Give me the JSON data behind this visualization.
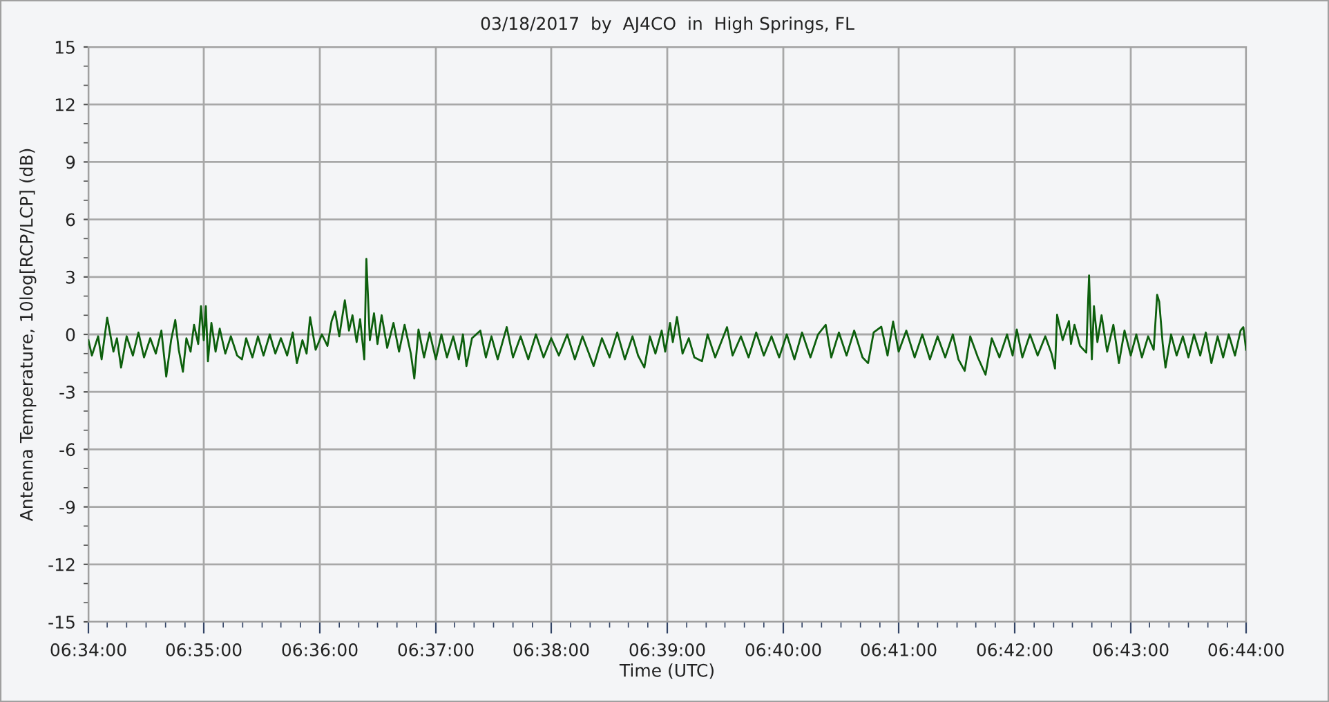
{
  "chart_data": {
    "type": "line",
    "title": "03/18/2017  by  AJ4CO  in  High Springs, FL",
    "xlabel": "Time (UTC)",
    "ylabel": "Antenna Temperature, 10log[RCP/LCP] (dB)",
    "x": [
      6.5667,
      6.5672,
      6.5681,
      6.5686,
      6.5694,
      6.5703,
      6.5708,
      6.5714,
      6.5722,
      6.5731,
      6.5739,
      6.5747,
      6.5756,
      6.5764,
      6.5772,
      6.5779,
      6.5786,
      6.5792,
      6.5797,
      6.5803,
      6.5808,
      6.5814,
      6.5819,
      6.5825,
      6.5829,
      6.5833,
      6.5836,
      6.5839,
      6.5844,
      6.585,
      6.5856,
      6.5864,
      6.5872,
      6.5881,
      6.5888,
      6.5894,
      6.5903,
      6.5911,
      6.5919,
      6.5928,
      6.5936,
      6.5944,
      6.5953,
      6.5961,
      6.5967,
      6.5975,
      6.5981,
      6.5986,
      6.5994,
      6.6003,
      6.6011,
      6.6017,
      6.6022,
      6.6028,
      6.6036,
      6.6042,
      6.6047,
      6.6053,
      6.6058,
      6.6064,
      6.6067,
      6.6072,
      6.6078,
      6.6083,
      6.6089,
      6.6097,
      6.6106,
      6.6114,
      6.6122,
      6.6131,
      6.6136,
      6.6142,
      6.615,
      6.6158,
      6.6167,
      6.6175,
      6.6183,
      6.6192,
      6.62,
      6.6206,
      6.6211,
      6.6219,
      6.6231,
      6.6239,
      6.6247,
      6.6256,
      6.6269,
      6.6278,
      6.6289,
      6.63,
      6.6311,
      6.6322,
      6.6333,
      6.6344,
      6.6356,
      6.6367,
      6.6378,
      6.6394,
      6.6406,
      6.6417,
      6.6428,
      6.6439,
      6.645,
      6.6458,
      6.6467,
      6.6475,
      6.6483,
      6.6492,
      6.6497,
      6.6504,
      6.6508,
      6.6514,
      6.6522,
      6.6531,
      6.6539,
      6.655,
      6.6558,
      6.6569,
      6.6586,
      6.6594,
      6.6606,
      6.6617,
      6.6628,
      6.6639,
      6.665,
      6.6661,
      6.6672,
      6.6683,
      6.6694,
      6.6706,
      6.6717,
      6.6728,
      6.6736,
      6.6747,
      6.6758,
      6.6769,
      6.6781,
      6.6789,
      6.6797,
      6.6808,
      6.6817,
      6.6825,
      6.6833,
      6.6844,
      6.6856,
      6.6867,
      6.6878,
      6.6889,
      6.69,
      6.6911,
      6.6919,
      6.6928,
      6.6936,
      6.6947,
      6.6958,
      6.6967,
      6.6978,
      6.6989,
      6.6997,
      6.7003,
      6.7011,
      6.7022,
      6.7033,
      6.7044,
      6.7053,
      6.7058,
      6.7061,
      6.7069,
      6.7078,
      6.7081,
      6.7086,
      6.7094,
      6.7103,
      6.7107,
      6.7111,
      6.7114,
      6.7119,
      6.7125,
      6.7133,
      6.7142,
      6.715,
      6.7158,
      6.7167,
      6.7175,
      6.7183,
      6.7192,
      6.72,
      6.7205,
      6.7208,
      6.7213,
      6.7217,
      6.7225,
      6.7233,
      6.7242,
      6.725,
      6.7258,
      6.7267,
      6.7275,
      6.7283,
      6.7292,
      6.73,
      6.7308,
      6.7317,
      6.7325,
      6.7329,
      6.7333
    ],
    "series": [
      {
        "color": "#0d5f0d",
        "values": [
          -0.3,
          -1.1,
          -0.1,
          -1.3,
          0.87,
          -0.9,
          -0.2,
          -1.73,
          -0.1,
          -1.1,
          0.1,
          -1.2,
          -0.2,
          -1.0,
          0.2,
          -2.2,
          -0.3,
          0.75,
          -0.8,
          -1.95,
          -0.2,
          -0.9,
          0.5,
          -0.5,
          1.47,
          -0.3,
          1.47,
          -1.4,
          0.6,
          -0.9,
          0.3,
          -1.0,
          -0.1,
          -1.1,
          -1.3,
          -0.2,
          -1.2,
          -0.1,
          -1.1,
          0.0,
          -1.0,
          -0.2,
          -1.1,
          0.1,
          -1.5,
          -0.3,
          -1.0,
          0.9,
          -0.8,
          0.0,
          -0.6,
          0.7,
          1.2,
          -0.1,
          1.78,
          0.2,
          1.0,
          -0.4,
          0.8,
          -1.3,
          3.94,
          -0.3,
          1.1,
          -0.5,
          1.0,
          -0.7,
          0.6,
          -0.9,
          0.5,
          -1.0,
          -2.3,
          0.26,
          -1.2,
          0.1,
          -1.3,
          0.0,
          -1.2,
          -0.1,
          -1.3,
          0.0,
          -1.65,
          -0.2,
          0.2,
          -1.2,
          -0.1,
          -1.3,
          0.38,
          -1.2,
          -0.1,
          -1.3,
          0.0,
          -1.2,
          -0.2,
          -1.1,
          0.0,
          -1.3,
          -0.1,
          -1.65,
          -0.2,
          -1.2,
          0.1,
          -1.3,
          -0.1,
          -1.1,
          -1.73,
          -0.1,
          -1.0,
          0.2,
          -0.9,
          0.6,
          -0.4,
          0.91,
          -1.0,
          -0.2,
          -1.2,
          -1.4,
          0.0,
          -1.2,
          0.38,
          -1.1,
          -0.1,
          -1.2,
          0.1,
          -1.1,
          -0.1,
          -1.2,
          0.0,
          -1.3,
          0.1,
          -1.2,
          0.0,
          0.5,
          -1.2,
          0.1,
          -1.1,
          0.2,
          -1.2,
          -1.5,
          0.1,
          0.4,
          -1.1,
          0.67,
          -0.9,
          0.2,
          -1.2,
          0.0,
          -1.3,
          -0.1,
          -1.2,
          0.0,
          -1.3,
          -1.9,
          -0.1,
          -1.2,
          -2.1,
          -0.2,
          -1.2,
          0.0,
          -1.1,
          0.26,
          -1.2,
          0.0,
          -1.1,
          -0.1,
          -1.0,
          -1.78,
          1.03,
          -0.3,
          0.7,
          -0.5,
          0.5,
          -0.6,
          -0.95,
          3.08,
          -1.3,
          1.47,
          -0.4,
          1.0,
          -0.9,
          0.5,
          -1.5,
          0.2,
          -1.1,
          0.0,
          -1.2,
          -0.1,
          -0.8,
          2.07,
          1.7,
          -0.5,
          -1.73,
          0.0,
          -1.1,
          -0.1,
          -1.2,
          0.0,
          -1.1,
          0.1,
          -1.5,
          -0.1,
          -1.2,
          0.0,
          -1.1,
          0.2,
          0.38,
          -0.8
        ]
      }
    ],
    "xlim": [
      6.5667,
      6.7333
    ],
    "xticks": [
      {
        "value": 6.5667,
        "label": "06:34:00"
      },
      {
        "value": 6.5694,
        "label": null
      },
      {
        "value": 6.5722,
        "label": null
      },
      {
        "value": 6.575,
        "label": null
      },
      {
        "value": 6.5778,
        "label": null
      },
      {
        "value": 6.5806,
        "label": null
      },
      {
        "value": 6.5833,
        "label": "06:35:00"
      },
      {
        "value": 6.5861,
        "label": null
      },
      {
        "value": 6.5889,
        "label": null
      },
      {
        "value": 6.5917,
        "label": null
      },
      {
        "value": 6.5944,
        "label": null
      },
      {
        "value": 6.5972,
        "label": null
      },
      {
        "value": 6.6,
        "label": "06:36:00"
      },
      {
        "value": 6.6028,
        "label": null
      },
      {
        "value": 6.6056,
        "label": null
      },
      {
        "value": 6.6083,
        "label": null
      },
      {
        "value": 6.6111,
        "label": null
      },
      {
        "value": 6.6139,
        "label": null
      },
      {
        "value": 6.6167,
        "label": "06:37:00"
      },
      {
        "value": 6.6194,
        "label": null
      },
      {
        "value": 6.6222,
        "label": null
      },
      {
        "value": 6.625,
        "label": null
      },
      {
        "value": 6.6278,
        "label": null
      },
      {
        "value": 6.6306,
        "label": null
      },
      {
        "value": 6.6333,
        "label": "06:38:00"
      },
      {
        "value": 6.6361,
        "label": null
      },
      {
        "value": 6.6389,
        "label": null
      },
      {
        "value": 6.6417,
        "label": null
      },
      {
        "value": 6.6444,
        "label": null
      },
      {
        "value": 6.6472,
        "label": null
      },
      {
        "value": 6.65,
        "label": "06:39:00"
      },
      {
        "value": 6.6528,
        "label": null
      },
      {
        "value": 6.6556,
        "label": null
      },
      {
        "value": 6.6583,
        "label": null
      },
      {
        "value": 6.6611,
        "label": null
      },
      {
        "value": 6.6639,
        "label": null
      },
      {
        "value": 6.6667,
        "label": "06:40:00"
      },
      {
        "value": 6.6694,
        "label": null
      },
      {
        "value": 6.6722,
        "label": null
      },
      {
        "value": 6.675,
        "label": null
      },
      {
        "value": 6.6778,
        "label": null
      },
      {
        "value": 6.6806,
        "label": null
      },
      {
        "value": 6.6833,
        "label": "06:41:00"
      },
      {
        "value": 6.6861,
        "label": null
      },
      {
        "value": 6.6889,
        "label": null
      },
      {
        "value": 6.6917,
        "label": null
      },
      {
        "value": 6.6944,
        "label": null
      },
      {
        "value": 6.6972,
        "label": null
      },
      {
        "value": 6.7,
        "label": "06:42:00"
      },
      {
        "value": 6.7028,
        "label": null
      },
      {
        "value": 6.7056,
        "label": null
      },
      {
        "value": 6.7083,
        "label": null
      },
      {
        "value": 6.7111,
        "label": null
      },
      {
        "value": 6.7139,
        "label": null
      },
      {
        "value": 6.7167,
        "label": "06:43:00"
      },
      {
        "value": 6.7194,
        "label": null
      },
      {
        "value": 6.7222,
        "label": null
      },
      {
        "value": 6.725,
        "label": null
      },
      {
        "value": 6.7278,
        "label": null
      },
      {
        "value": 6.7306,
        "label": null
      },
      {
        "value": 6.7333,
        "label": "06:44:00"
      }
    ],
    "ylim": [
      -15,
      15
    ],
    "yticks": [
      -15,
      {
        "value": -14,
        "label": null
      },
      {
        "value": -13,
        "label": null
      },
      -12,
      {
        "value": -11,
        "label": null
      },
      {
        "value": -10,
        "label": null
      },
      -9,
      {
        "value": -8,
        "label": null
      },
      {
        "value": -7,
        "label": null
      },
      -6,
      {
        "value": -5,
        "label": null
      },
      {
        "value": -4,
        "label": null
      },
      -3,
      {
        "value": -2,
        "label": null
      },
      {
        "value": -1,
        "label": null
      },
      0,
      {
        "value": 1,
        "label": null
      },
      {
        "value": 2,
        "label": null
      },
      3,
      {
        "value": 4,
        "label": null
      },
      {
        "value": 5,
        "label": null
      },
      6,
      {
        "value": 7,
        "label": null
      },
      {
        "value": 8,
        "label": null
      },
      9,
      {
        "value": 10,
        "label": null
      },
      {
        "value": 11,
        "label": null
      },
      12,
      {
        "value": 13,
        "label": null
      },
      {
        "value": 14,
        "label": null
      },
      15
    ],
    "grid": true,
    "line_style": "solid"
  }
}
